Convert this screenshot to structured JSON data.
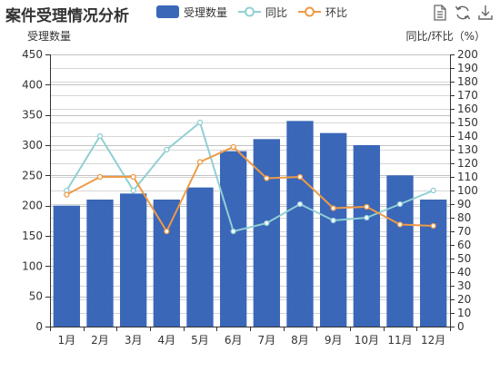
{
  "chart_data": {
    "type": "bar",
    "title": "案件受理情况分析",
    "categories": [
      "1月",
      "2月",
      "3月",
      "4月",
      "5月",
      "6月",
      "7月",
      "8月",
      "9月",
      "10月",
      "11月",
      "12月"
    ],
    "series": [
      {
        "name": "受理数量",
        "type": "bar",
        "axis": "left",
        "color": "#3a67b8",
        "values": [
          200,
          210,
          220,
          210,
          230,
          290,
          310,
          340,
          320,
          300,
          250,
          210
        ]
      },
      {
        "name": "同比",
        "type": "line",
        "axis": "right",
        "color": "#91cfd3",
        "values": [
          100,
          140,
          100,
          130,
          150,
          70,
          76,
          90,
          78,
          80,
          90,
          100
        ]
      },
      {
        "name": "环比",
        "type": "line",
        "axis": "right",
        "color": "#ee9a46",
        "values": [
          97,
          110,
          110,
          70,
          121,
          132,
          109,
          110,
          87,
          88,
          75,
          74
        ]
      }
    ],
    "ylabel": "受理数量",
    "y2label": "同比/环比（%）",
    "ylim": [
      0,
      450
    ],
    "y2lim": [
      0,
      200
    ],
    "yticks": [
      0,
      50,
      100,
      150,
      200,
      250,
      300,
      350,
      400,
      450
    ],
    "y2ticks": [
      0,
      10,
      20,
      30,
      40,
      50,
      60,
      70,
      80,
      90,
      100,
      110,
      120,
      130,
      140,
      150,
      160,
      170,
      180,
      190,
      200
    ],
    "grid": true,
    "legend_position": "top-center"
  },
  "toolbox": {
    "icons": [
      "data-view-icon",
      "refresh-icon",
      "download-icon"
    ]
  }
}
